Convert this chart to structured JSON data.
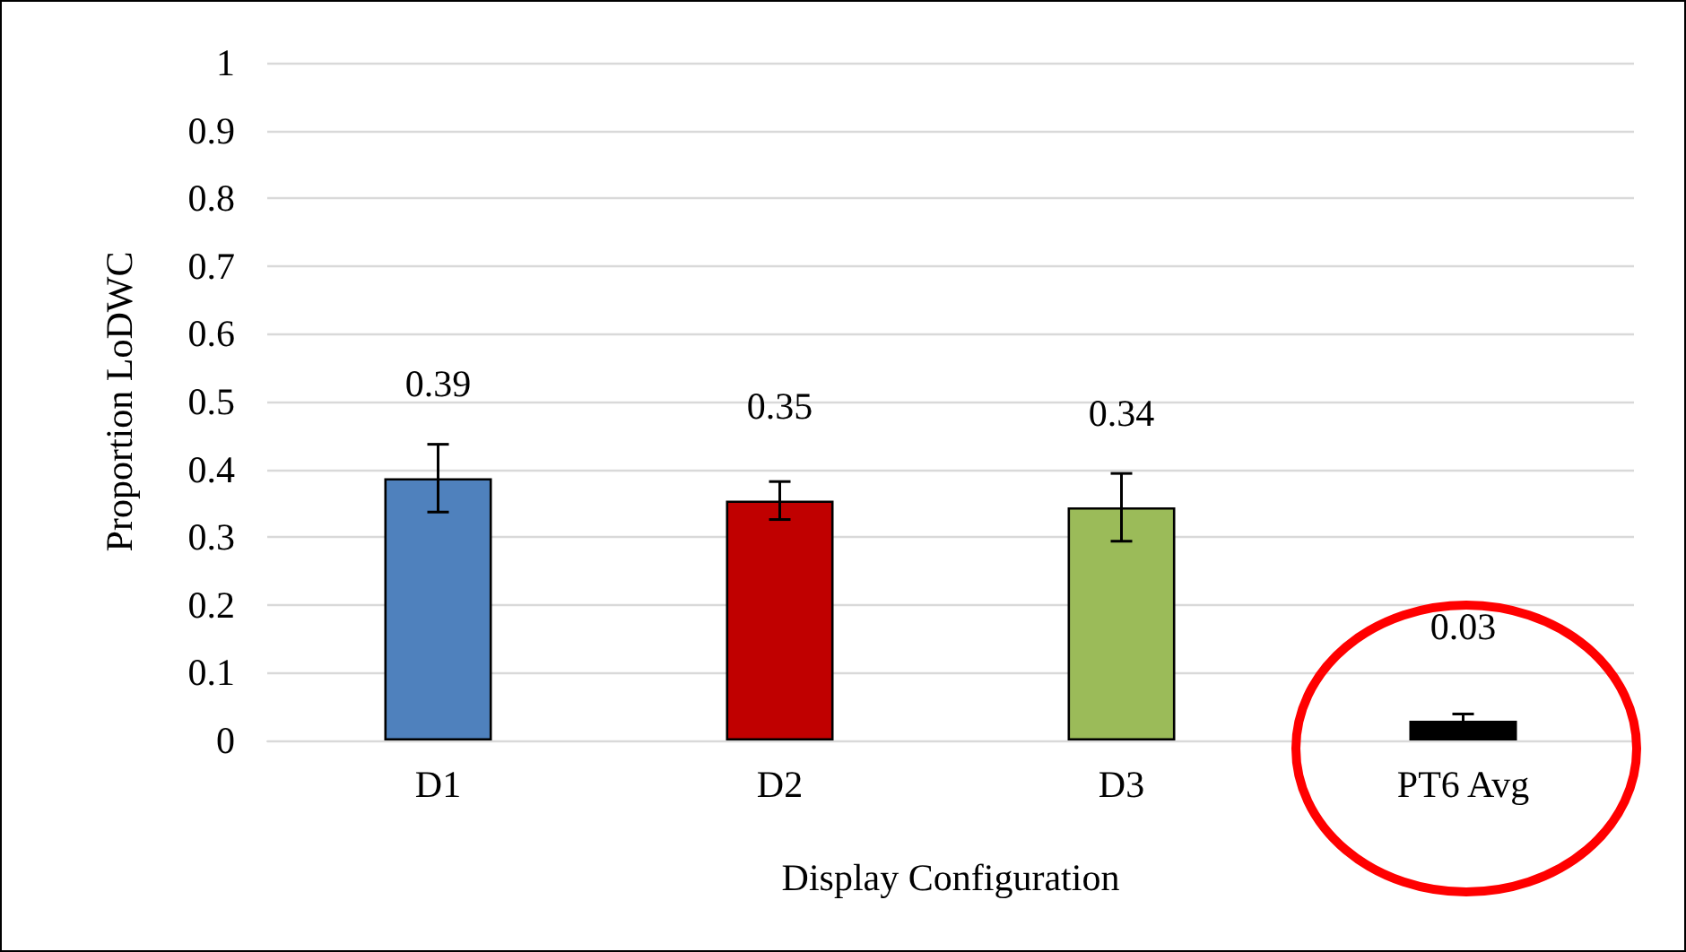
{
  "chart_data": {
    "type": "bar",
    "xlabel": "Display Configuration",
    "ylabel": "Proportion LoDWC",
    "categories": [
      "D1",
      "D2",
      "D3",
      "PT6 Avg"
    ],
    "values": [
      0.387,
      0.354,
      0.344,
      0.029
    ],
    "colors": [
      "#4f81bd",
      "#c00000",
      "#9bbb59",
      "#000000"
    ],
    "value_labels": [
      "0.39",
      "0.35",
      "0.34",
      "0.03"
    ],
    "errors": [
      0.05,
      0.028,
      0.05,
      0.01
    ],
    "ylim": [
      0,
      1
    ],
    "yticks": [
      0,
      0.1,
      0.2,
      0.3,
      0.4,
      0.5,
      0.6,
      0.7,
      0.8,
      0.9,
      1
    ],
    "grid": "y"
  }
}
